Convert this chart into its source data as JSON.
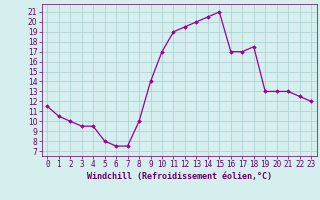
{
  "x": [
    0,
    1,
    2,
    3,
    4,
    5,
    6,
    7,
    8,
    9,
    10,
    11,
    12,
    13,
    14,
    15,
    16,
    17,
    18,
    19,
    20,
    21,
    22,
    23
  ],
  "y": [
    11.5,
    10.5,
    10.0,
    9.5,
    9.5,
    8.0,
    7.5,
    7.5,
    10.0,
    14.0,
    17.0,
    19.0,
    19.5,
    20.0,
    20.5,
    21.0,
    17.0,
    17.0,
    17.5,
    13.0,
    13.0,
    13.0,
    12.5,
    12.0
  ],
  "line_color": "#990099",
  "marker": "D",
  "marker_size": 1.8,
  "linewidth": 0.9,
  "xlabel": "Windchill (Refroidissement éolien,°C)",
  "xlabel_fontsize": 6.0,
  "ylabel_ticks": [
    7,
    8,
    9,
    10,
    11,
    12,
    13,
    14,
    15,
    16,
    17,
    18,
    19,
    20,
    21
  ],
  "xlim": [
    -0.5,
    23.5
  ],
  "ylim": [
    6.5,
    21.8
  ],
  "background_color": "#d5eeee",
  "grid_color": "#aacccc",
  "tick_color": "#660066",
  "label_color": "#660066",
  "tick_fontsize": 5.5,
  "spine_color": "#660066"
}
